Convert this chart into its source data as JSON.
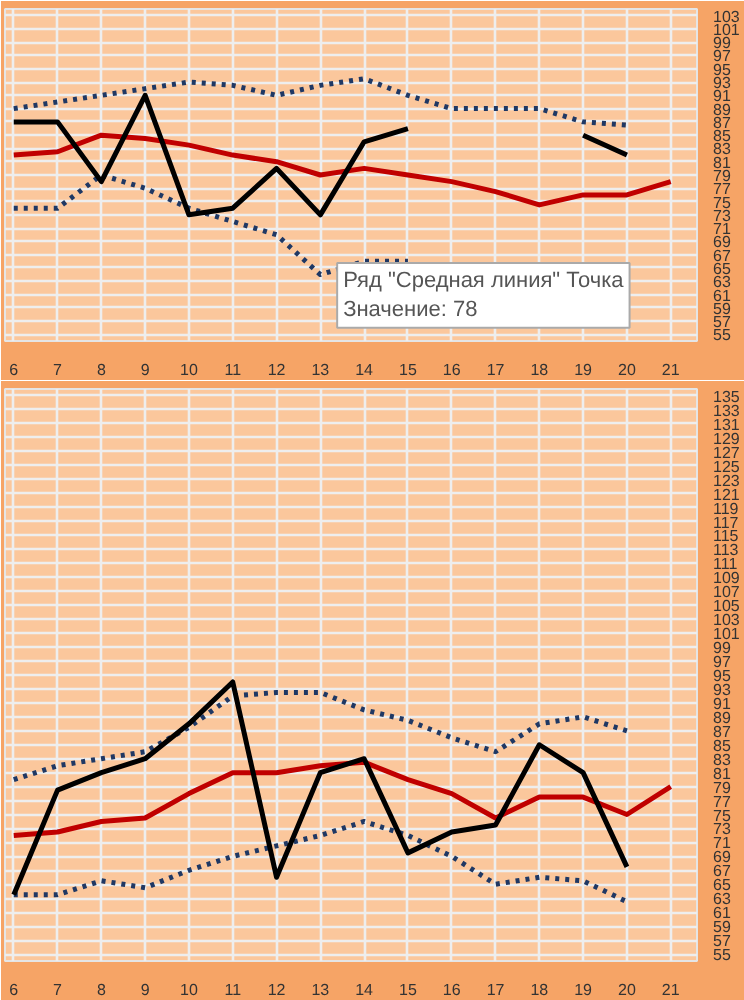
{
  "chart_data": [
    {
      "type": "line",
      "x": [
        6,
        7,
        8,
        9,
        10,
        11,
        12,
        13,
        14,
        15,
        16,
        17,
        18,
        19,
        20,
        21
      ],
      "xlim": [
        5.8,
        21.6
      ],
      "xticks": [
        6,
        7,
        8,
        9,
        10,
        11,
        12,
        13,
        14,
        15,
        16,
        17,
        18,
        19,
        20,
        21
      ],
      "ylim": [
        54,
        104
      ],
      "yticks": [
        55,
        57,
        59,
        61,
        63,
        65,
        67,
        69,
        71,
        73,
        75,
        77,
        79,
        81,
        83,
        85,
        87,
        89,
        91,
        93,
        95,
        97,
        99,
        101,
        103
      ],
      "grid": true,
      "annotations": [
        "Ряд \"Средная линия\" Точка",
        "Значение: 78"
      ],
      "series": [
        {
          "color": "#1f3864",
          "line_style": "dotted",
          "values": [
            89,
            90,
            91,
            92,
            93,
            92.5,
            91,
            92.5,
            93.5,
            91,
            89,
            89,
            89,
            87,
            86.5,
            null
          ]
        },
        {
          "color": "#1f3864",
          "line_style": "dotted",
          "values": [
            74,
            74,
            79,
            77,
            74,
            72,
            70,
            64,
            66,
            66,
            null,
            null,
            null,
            null,
            null,
            null
          ]
        },
        {
          "color": "#c00000",
          "line_style": "solid",
          "values": [
            82,
            82.5,
            85,
            84.5,
            83.5,
            82,
            81,
            79,
            80,
            79,
            78,
            76.5,
            74.5,
            76,
            76,
            78
          ]
        },
        {
          "color": "#000000",
          "line_style": "solid",
          "values": [
            87,
            87,
            78,
            91,
            73,
            74,
            80,
            73,
            84,
            86,
            null,
            null,
            null,
            85,
            82,
            null
          ]
        }
      ]
    },
    {
      "type": "line",
      "x": [
        6,
        7,
        8,
        9,
        10,
        11,
        12,
        13,
        14,
        15,
        16,
        17,
        18,
        19,
        20,
        21
      ],
      "xlim": [
        5.8,
        21.6
      ],
      "xticks": [
        6,
        7,
        8,
        9,
        10,
        11,
        12,
        13,
        14,
        15,
        16,
        17,
        18,
        19,
        20,
        21
      ],
      "ylim": [
        54,
        136
      ],
      "yticks": [
        55,
        57,
        59,
        61,
        63,
        65,
        67,
        69,
        71,
        73,
        75,
        77,
        79,
        81,
        83,
        85,
        87,
        89,
        91,
        93,
        95,
        97,
        99,
        101,
        103,
        105,
        107,
        109,
        111,
        113,
        115,
        117,
        119,
        121,
        123,
        125,
        127,
        129,
        131,
        133,
        135
      ],
      "grid": true,
      "series": [
        {
          "color": "#1f3864",
          "line_style": "dotted",
          "values": [
            80,
            82,
            83,
            84,
            87.5,
            92,
            92.5,
            92.5,
            90,
            88.5,
            86,
            84,
            88,
            89,
            87,
            null
          ]
        },
        {
          "color": "#1f3864",
          "line_style": "dotted",
          "values": [
            63.5,
            63.5,
            65.5,
            64.5,
            67,
            69,
            70.5,
            72,
            74,
            72,
            69,
            65,
            66,
            65.5,
            62.5,
            null
          ]
        },
        {
          "color": "#c00000",
          "line_style": "solid",
          "values": [
            72,
            72.5,
            74,
            74.5,
            78,
            81,
            81,
            82,
            82.5,
            80,
            78,
            74.5,
            77.5,
            77.5,
            75,
            79
          ]
        },
        {
          "color": "#000000",
          "line_style": "solid",
          "values": [
            63.5,
            78.5,
            81,
            83,
            88,
            94,
            66,
            81,
            83,
            69.5,
            72.5,
            73.5,
            85,
            81,
            67.5,
            null
          ]
        }
      ]
    }
  ]
}
